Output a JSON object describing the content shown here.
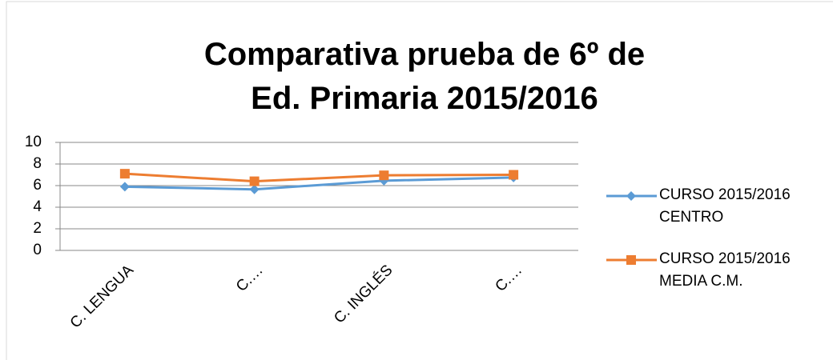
{
  "chart_data": {
    "type": "line",
    "title": "Comparativa prueba de 6º de Ed. Primaria 2015/2016",
    "categories": [
      "C. LENGUA",
      "C.…",
      "C. INGLÉS",
      "C.…"
    ],
    "series": [
      {
        "name": "CURSO 2015/2016 CENTRO",
        "color": "#5b9bd5",
        "marker": "diamond",
        "values": [
          5.9,
          5.65,
          6.45,
          6.75
        ]
      },
      {
        "name": "CURSO 2015/2016 MEDIA C.M.",
        "color": "#ed7d31",
        "marker": "square",
        "values": [
          7.1,
          6.4,
          6.95,
          7.0
        ]
      }
    ],
    "ylim": [
      0,
      10
    ],
    "yticks": [
      0,
      2,
      4,
      6,
      8,
      10
    ],
    "grid": true,
    "legend": "right"
  }
}
